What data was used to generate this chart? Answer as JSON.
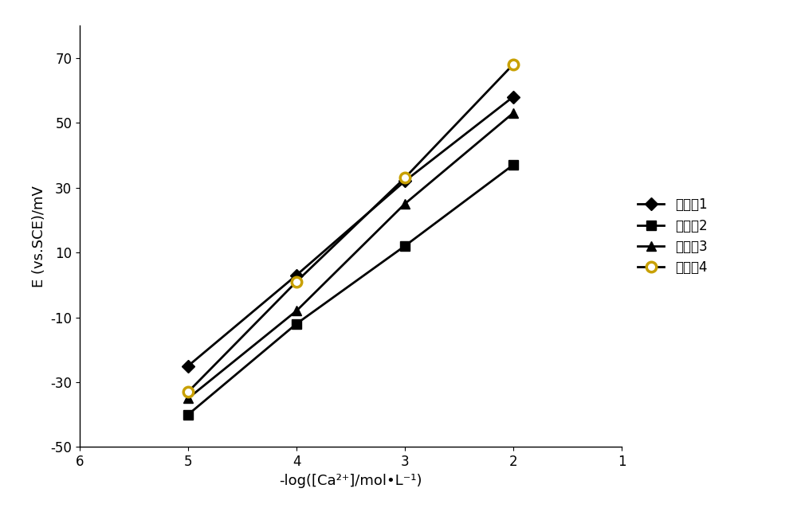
{
  "x": [
    5,
    4,
    3,
    2
  ],
  "series": [
    {
      "label": "实施例1",
      "y": [
        -25,
        3,
        32,
        58
      ],
      "marker": "D",
      "color": "#000000",
      "markersize": 8,
      "markerfacecolor": "#000000",
      "markeredgecolor": "#000000",
      "markeredgewidth": 1.0
    },
    {
      "label": "实施例2",
      "y": [
        -40,
        -12,
        12,
        37
      ],
      "marker": "s",
      "color": "#000000",
      "markersize": 8,
      "markerfacecolor": "#000000",
      "markeredgecolor": "#000000",
      "markeredgewidth": 1.0
    },
    {
      "label": "实施例3",
      "y": [
        -35,
        -8,
        25,
        53
      ],
      "marker": "^",
      "color": "#000000",
      "markersize": 8,
      "markerfacecolor": "#000000",
      "markeredgecolor": "#000000",
      "markeredgewidth": 1.0
    },
    {
      "label": "实施例4",
      "y": [
        -33,
        1,
        33,
        68
      ],
      "marker": "o",
      "color": "#000000",
      "markersize": 9,
      "markerfacecolor": "#ffffff",
      "markeredgecolor": "#c8a000",
      "markeredgewidth": 2.5
    }
  ],
  "xlabel": "-log([Ca²⁺]/mol•L⁻¹)",
  "ylabel": "E (vs.SCE)/mV",
  "xlim": [
    6,
    1
  ],
  "ylim": [
    -50,
    80
  ],
  "yticks": [
    -50,
    -30,
    -10,
    10,
    30,
    50,
    70
  ],
  "xticks": [
    6,
    5,
    4,
    3,
    2,
    1
  ],
  "background_color": "#ffffff",
  "linewidth": 2.0,
  "legend_fontsize": 12,
  "axis_fontsize": 13,
  "tick_fontsize": 12
}
